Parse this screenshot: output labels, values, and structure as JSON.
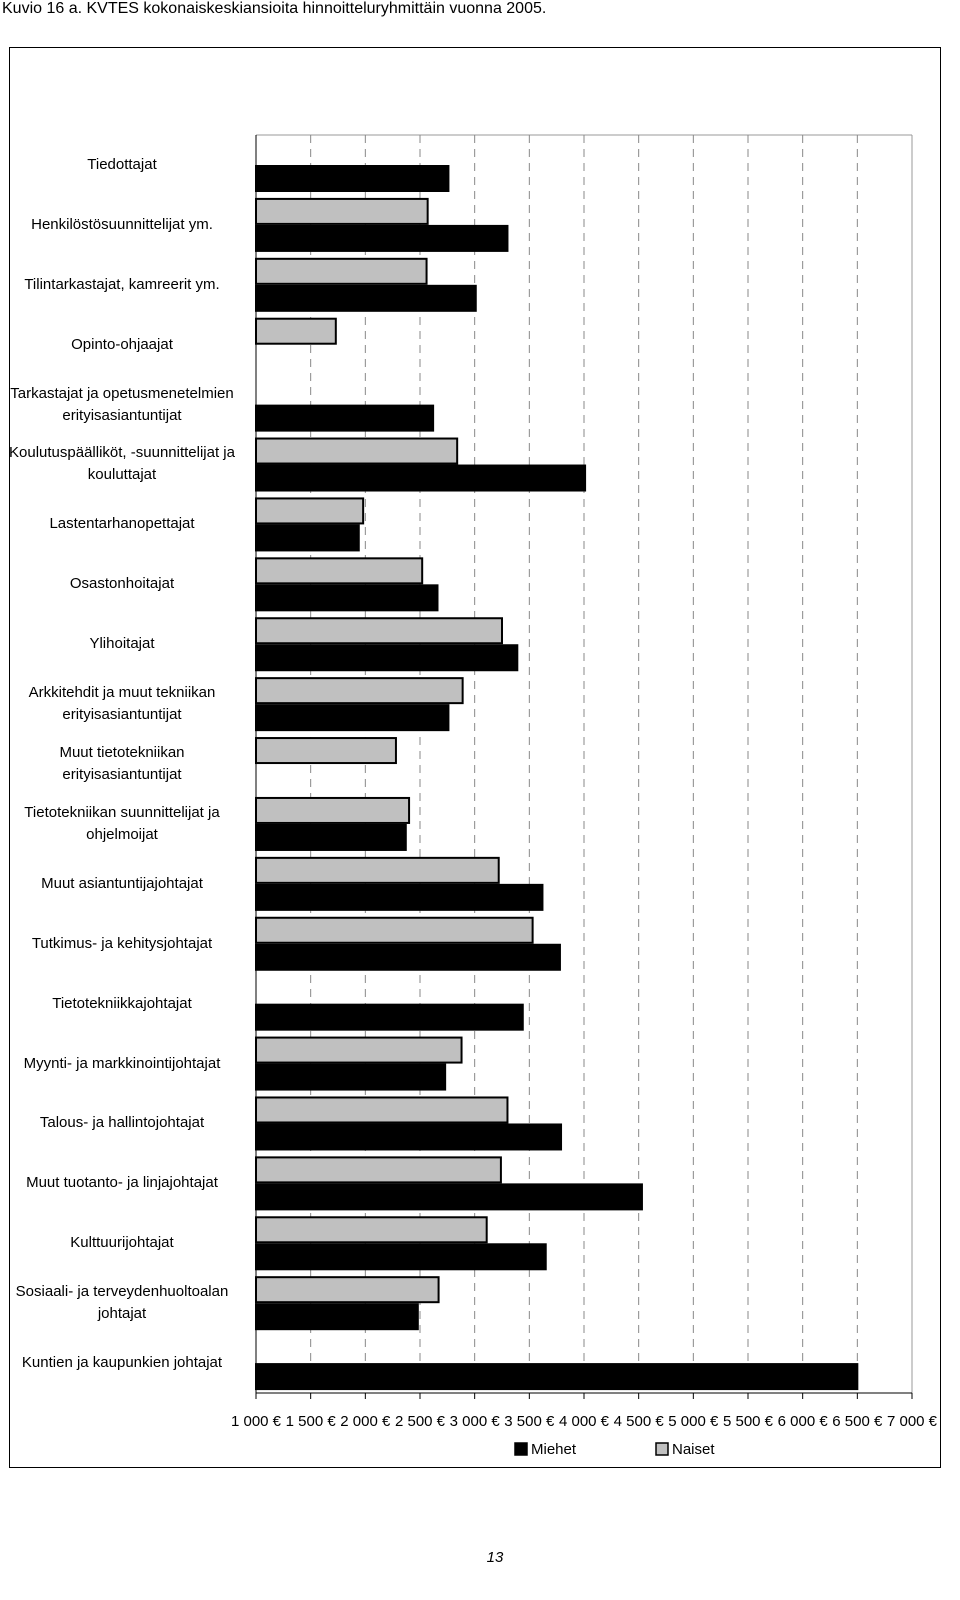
{
  "title": "Kuvio 16 a. KVTES kokonaiskeskiansioita hinnoitteluryhmittäin vuonna 2005.",
  "page_number": "13",
  "chart_data": {
    "type": "bar",
    "orientation": "horizontal",
    "categories": [
      "Tiedottajat",
      "Henkilöstösuunnittelijat ym.",
      "Tilintarkastajat, kamreerit ym.",
      "Opinto-ohjaajat",
      "Tarkastajat ja opetusmenetelmien\nerityisasiantuntijat",
      "Koulutuspäälliköt, -suunnittelijat ja\nkouluttajat",
      "Lastentarhanopettajat",
      "Osastonhoitajat",
      "Ylihoitajat",
      "Arkkitehdit ja muut tekniikan\nerityisasiantuntijat",
      "Muut tietotekniikan\nerityisasiantuntijat",
      "Tietotekniikan suunnittelijat ja\nohjelmoijat",
      "Muut asiantuntijajohtajat",
      "Tutkimus- ja kehitysjohtajat",
      "Tietotekniikkajohtajat",
      "Myynti- ja markkinointijohtajat",
      "Talous- ja hallintojohtajat",
      "Muut tuotanto- ja linjajohtajat",
      "Kulttuurijohtajat",
      "Sosiaali- ja terveydenhuoltoalan\njohtajat",
      "Kuntien ja kaupunkien johtajat"
    ],
    "series": [
      {
        "name": "Miehet",
        "color": "#000000",
        "values": [
          2760,
          3300,
          3010,
          null,
          2620,
          4010,
          1940,
          2660,
          3390,
          2760,
          null,
          2370,
          3620,
          3780,
          3440,
          2730,
          3790,
          4530,
          3650,
          2480,
          6500
        ]
      },
      {
        "name": "Naiset",
        "color": "#c0c0c0",
        "values": [
          null,
          2570,
          2560,
          1730,
          null,
          2840,
          1980,
          2520,
          3250,
          2890,
          2280,
          2400,
          3220,
          3530,
          null,
          2880,
          3300,
          3240,
          3110,
          2670,
          null
        ]
      }
    ],
    "xlim": [
      1000,
      7000
    ],
    "xticks": [
      {
        "value": 1000,
        "label": "1 000 €"
      },
      {
        "value": 1500,
        "label": "1 500 €"
      },
      {
        "value": 2000,
        "label": "2 000 €"
      },
      {
        "value": 2500,
        "label": "2 500 €"
      },
      {
        "value": 3000,
        "label": "3 000 €"
      },
      {
        "value": 3500,
        "label": "3 500 €"
      },
      {
        "value": 4000,
        "label": "4 000 €"
      },
      {
        "value": 4500,
        "label": "4 500 €"
      },
      {
        "value": 5000,
        "label": "5 000 €"
      },
      {
        "value": 5500,
        "label": "5 500 €"
      },
      {
        "value": 6000,
        "label": "6 000 €"
      },
      {
        "value": 6500,
        "label": "6 500 €"
      },
      {
        "value": 7000,
        "label": "7 000 €"
      }
    ],
    "grid": true,
    "legend": "bottom"
  }
}
